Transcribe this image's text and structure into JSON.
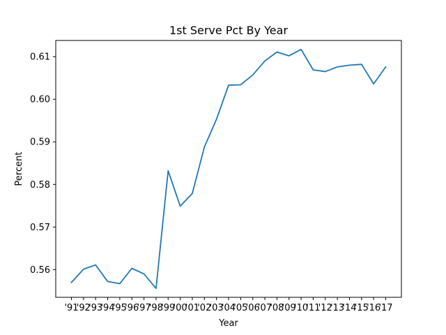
{
  "chart_data": {
    "type": "line",
    "title": "1st Serve Pct By Year",
    "xlabel": "Year",
    "ylabel": "Percent",
    "categories": [
      "'91",
      "'92",
      "'93",
      "'94",
      "'95",
      "'96",
      "'97",
      "'98",
      "'99",
      "'00",
      "'01",
      "'02",
      "'03",
      "'04",
      "'05",
      "'06",
      "'07",
      "'08",
      "'09",
      "'10",
      "'11",
      "'12",
      "'13",
      "'14",
      "'15",
      "'16",
      "'17"
    ],
    "series": [
      {
        "color": "#1f77b4",
        "values": [
          0.557,
          0.5601,
          0.5611,
          0.5572,
          0.5567,
          0.5603,
          0.559,
          0.5556,
          0.5832,
          0.5749,
          0.5779,
          0.5888,
          0.5953,
          0.6033,
          0.6034,
          0.6057,
          0.609,
          0.6111,
          0.6102,
          0.6117,
          0.6069,
          0.6065,
          0.6076,
          0.608,
          0.6082,
          0.6036,
          0.6076
        ]
      }
    ],
    "ylim": [
      0.5535,
      0.6138
    ],
    "yticks": [
      0.56,
      0.57,
      0.58,
      0.59,
      0.6,
      0.61
    ],
    "ytick_labels": [
      "0.56",
      "0.57",
      "0.58",
      "0.59",
      "0.60",
      "0.61"
    ],
    "grid": false
  }
}
